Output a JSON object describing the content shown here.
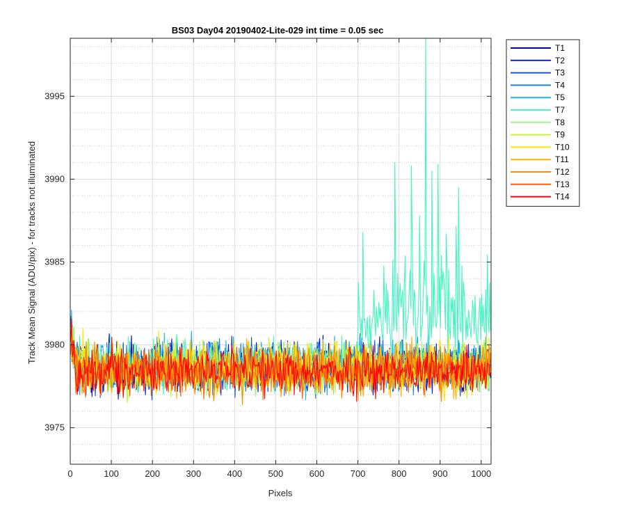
{
  "chart_data": {
    "type": "line",
    "title": "BS03 Day04 20190402-Lite-029 int time = 0.05 sec",
    "xlabel": "Pixels",
    "ylabel": "Track Mean Signal (ADU/pix) - for tracks not illuminated",
    "xlim": [
      0,
      1024
    ],
    "ylim": [
      3972.8,
      3998.5
    ],
    "xticks": [
      0,
      100,
      200,
      300,
      400,
      500,
      600,
      700,
      800,
      900,
      1000
    ],
    "yticks": [
      3975,
      3980,
      3985,
      3990,
      3995
    ],
    "grid": true,
    "minor_grid": true,
    "legend_position": "outside-top-right",
    "baseline_mean": 3978.5,
    "series": [
      {
        "name": "T1",
        "color": "#0000a6",
        "mean": 3978.6,
        "spread": 1.3
      },
      {
        "name": "T2",
        "color": "#0a1ec8",
        "mean": 3978.7,
        "spread": 1.3
      },
      {
        "name": "T3",
        "color": "#1a4fd6",
        "mean": 3978.6,
        "spread": 1.3
      },
      {
        "name": "T4",
        "color": "#1f7fe0",
        "mean": 3978.7,
        "spread": 1.3
      },
      {
        "name": "T5",
        "color": "#1fb2ee",
        "mean": 3978.8,
        "spread": 1.4
      },
      {
        "name": "T7",
        "color": "#45f5c0",
        "mean": 3978.8,
        "spread": 1.4,
        "feature": "noise increases beyond pixel ~700; peaks near 3991 (x≈790, 830), 3998.5 (x≈865), 3990.5 (x≈880), 3991 (x≈895), 3989.5 (x≈945)"
      },
      {
        "name": "T8",
        "color": "#9ef58a",
        "mean": 3978.7,
        "spread": 1.3
      },
      {
        "name": "T9",
        "color": "#c8f53c",
        "mean": 3978.6,
        "spread": 1.3
      },
      {
        "name": "T10",
        "color": "#ffe600",
        "mean": 3978.6,
        "spread": 1.4
      },
      {
        "name": "T11",
        "color": "#ffb000",
        "mean": 3978.5,
        "spread": 1.3
      },
      {
        "name": "T12",
        "color": "#ff8a00",
        "mean": 3978.5,
        "spread": 1.3
      },
      {
        "name": "T13",
        "color": "#ff5a10",
        "mean": 3978.4,
        "spread": 1.2
      },
      {
        "name": "T14",
        "color": "#ff0000",
        "mean": 3978.4,
        "spread": 1.2
      }
    ]
  }
}
